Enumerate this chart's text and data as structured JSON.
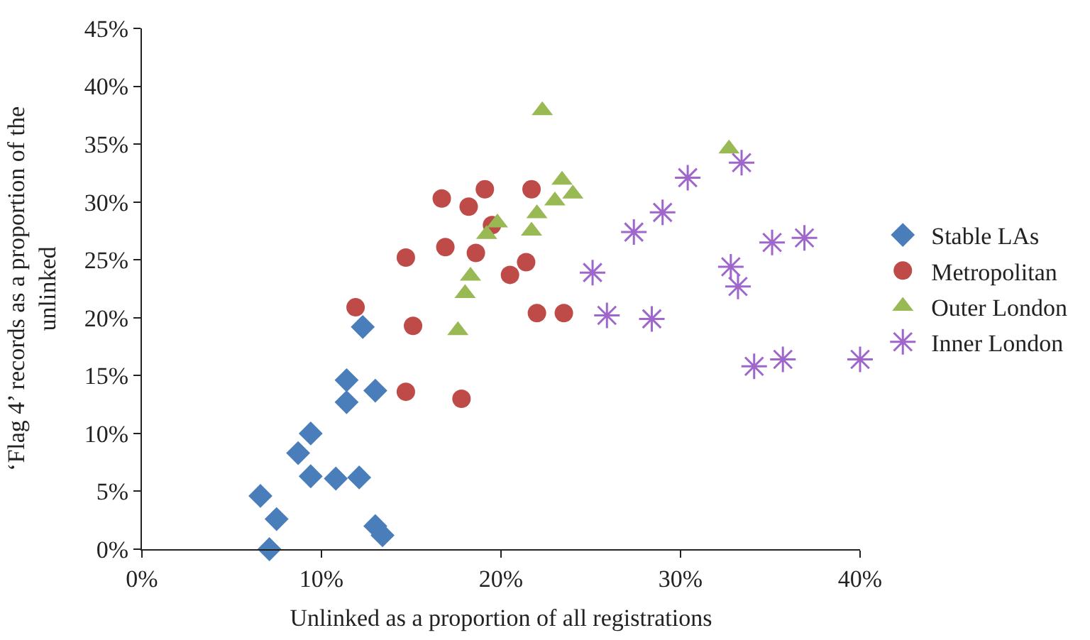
{
  "chart_data": {
    "type": "scatter",
    "xlabel": "Unlinked as a proportion of all registrations",
    "ylabel": "‘Flag 4’ records as a proportion of the unlinked",
    "xlim": [
      0,
      40
    ],
    "ylim": [
      0,
      45
    ],
    "xticks": [
      {
        "value": 0,
        "label": "0%"
      },
      {
        "value": 10,
        "label": "10%"
      },
      {
        "value": 20,
        "label": "20%"
      },
      {
        "value": 30,
        "label": "30%"
      },
      {
        "value": 40,
        "label": "40%"
      }
    ],
    "yticks": [
      {
        "value": 0,
        "label": "0%"
      },
      {
        "value": 5,
        "label": "5%"
      },
      {
        "value": 10,
        "label": "10%"
      },
      {
        "value": 15,
        "label": "15%"
      },
      {
        "value": 20,
        "label": "20%"
      },
      {
        "value": 25,
        "label": "25%"
      },
      {
        "value": 30,
        "label": "30%"
      },
      {
        "value": 35,
        "label": "35%"
      },
      {
        "value": 40,
        "label": "40%"
      },
      {
        "value": 45,
        "label": "45%"
      }
    ],
    "legend": "right",
    "series": [
      {
        "name": "Stable LAs",
        "color": "#4a7ebb",
        "marker": "diamond",
        "x": [
          6.6,
          7.5,
          7.1,
          8.7,
          9.4,
          9.4,
          10.8,
          12.1,
          11.4,
          11.4,
          12.3,
          13.0,
          13.0,
          13.4
        ],
        "values": [
          4.6,
          2.6,
          0,
          8.3,
          10.0,
          6.3,
          6.1,
          6.2,
          14.6,
          12.7,
          19.2,
          13.7,
          2.0,
          1.2
        ]
      },
      {
        "name": "Metropolitan",
        "color": "#be4b48",
        "marker": "circle",
        "x": [
          11.9,
          14.7,
          15.1,
          14.7,
          16.7,
          16.9,
          18.2,
          19.1,
          17.8,
          18.6,
          19.5,
          20.5,
          21.7,
          21.4,
          22.0,
          23.5
        ],
        "values": [
          20.9,
          25.2,
          19.3,
          13.6,
          30.3,
          26.1,
          29.6,
          31.1,
          13.0,
          25.6,
          28.0,
          23.7,
          31.1,
          24.8,
          20.4,
          20.4
        ]
      },
      {
        "name": "Outer London",
        "color": "#98b954",
        "marker": "triangle",
        "x": [
          22.3,
          17.6,
          18.0,
          18.3,
          19.2,
          19.8,
          21.7,
          22.0,
          23.0,
          23.4,
          24.0,
          32.7
        ],
        "values": [
          37.9,
          18.9,
          22.1,
          23.6,
          27.2,
          28.2,
          27.5,
          29.0,
          30.1,
          31.9,
          30.7,
          34.6
        ]
      },
      {
        "name": "Inner London",
        "color": "#9f66cc",
        "marker": "cross",
        "x": [
          25.1,
          25.9,
          28.4,
          27.4,
          29.0,
          30.4,
          33.4,
          32.8,
          33.2,
          35.1,
          36.9,
          34.1,
          35.7,
          40.0
        ],
        "values": [
          23.9,
          20.2,
          19.9,
          27.4,
          29.1,
          32.1,
          33.4,
          24.4,
          22.7,
          26.5,
          26.9,
          15.8,
          16.4,
          16.4
        ]
      }
    ]
  }
}
